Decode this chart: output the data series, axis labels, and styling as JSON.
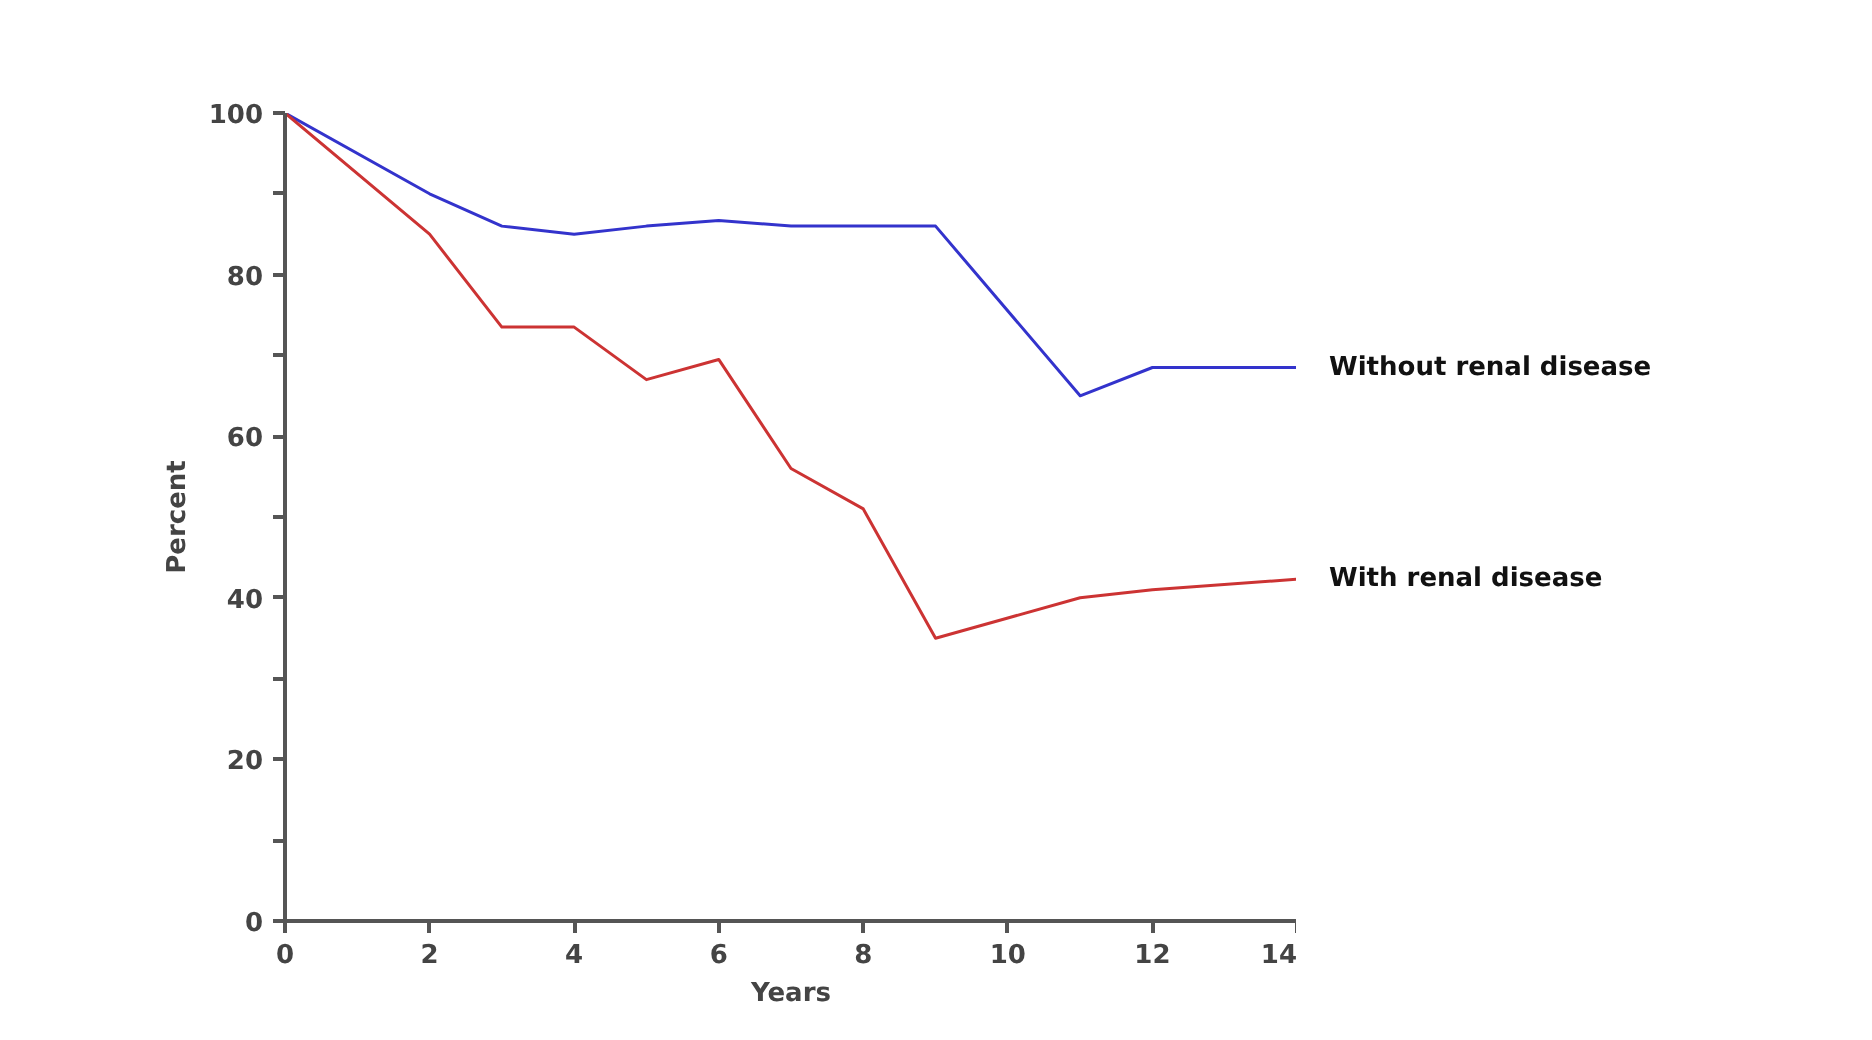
{
  "chart_data": {
    "type": "line",
    "xlabel": "Years",
    "ylabel": "Percent",
    "xlim": [
      0,
      14
    ],
    "ylim": [
      0,
      100
    ],
    "xticks": [
      0,
      2,
      4,
      6,
      8,
      10,
      12,
      14
    ],
    "yticks": [
      0,
      {
        "value": 10,
        "label": null
      },
      20,
      {
        "value": 30,
        "label": null
      },
      40,
      {
        "value": 50,
        "label": null
      },
      60,
      {
        "value": 70,
        "label": null
      },
      80,
      {
        "value": 90,
        "label": null
      },
      100
    ],
    "grid": false,
    "marker": "none",
    "line_style": "solid",
    "series": [
      {
        "name": "Without renal disease",
        "color": "#3333cc",
        "x": [
          0,
          2,
          3,
          4,
          5,
          6,
          7,
          9,
          11,
          12,
          14
        ],
        "values": [
          100,
          90,
          86,
          85,
          86,
          86.7,
          86,
          86,
          65,
          68.5,
          68.5
        ]
      },
      {
        "name": "With renal disease",
        "color": "#cc3333",
        "x": [
          0,
          2,
          3,
          4,
          5,
          6,
          7,
          8,
          9,
          10,
          11,
          12,
          14
        ],
        "values": [
          100,
          85,
          73.5,
          73.5,
          67,
          69.5,
          56,
          51,
          35,
          37.5,
          40,
          41,
          42.3
        ]
      }
    ]
  }
}
